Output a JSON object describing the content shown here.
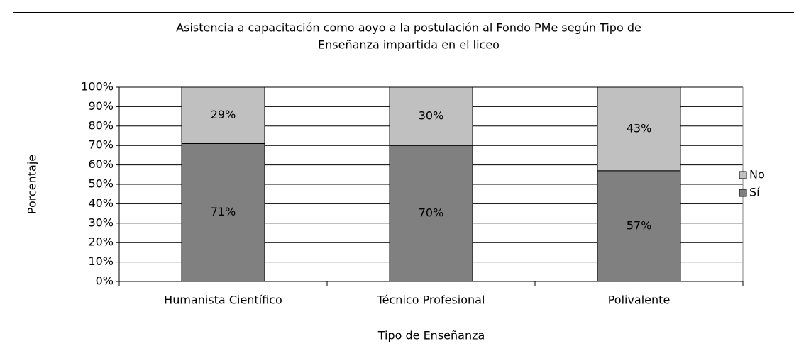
{
  "chart_data": {
    "type": "stacked_bar",
    "title": [
      "Asistencia a capacitación como aoyo a la postulación al Fondo PMe según Tipo de",
      "Enseñanza impartida en el liceo"
    ],
    "x_label": "Tipo de Enseñanza",
    "y_label": "Porcentaje",
    "categories": [
      "Humanista Científico",
      "Técnico Profesional",
      "Polivalente"
    ],
    "series": [
      {
        "name": "Sí",
        "color": "#808080",
        "values": [
          71,
          70,
          57
        ],
        "value_labels": [
          "71%",
          "70%",
          "57%"
        ]
      },
      {
        "name": "No",
        "color": "#c0c0c0",
        "values": [
          29,
          30,
          43
        ],
        "value_labels": [
          "29%",
          "30%",
          "43%"
        ]
      }
    ],
    "ylim": [
      0,
      100
    ],
    "yticks": [
      {
        "value": 0,
        "label": "0%"
      },
      {
        "value": 10,
        "label": "10%"
      },
      {
        "value": 20,
        "label": "20%"
      },
      {
        "value": 30,
        "label": "30%"
      },
      {
        "value": 40,
        "label": "40%"
      },
      {
        "value": 50,
        "label": "50%"
      },
      {
        "value": 60,
        "label": "60%"
      },
      {
        "value": 70,
        "label": "70%"
      },
      {
        "value": 80,
        "label": "80%"
      },
      {
        "value": 90,
        "label": "90%"
      },
      {
        "value": 100,
        "label": "100%"
      }
    ],
    "grid": true,
    "legend": "right"
  }
}
